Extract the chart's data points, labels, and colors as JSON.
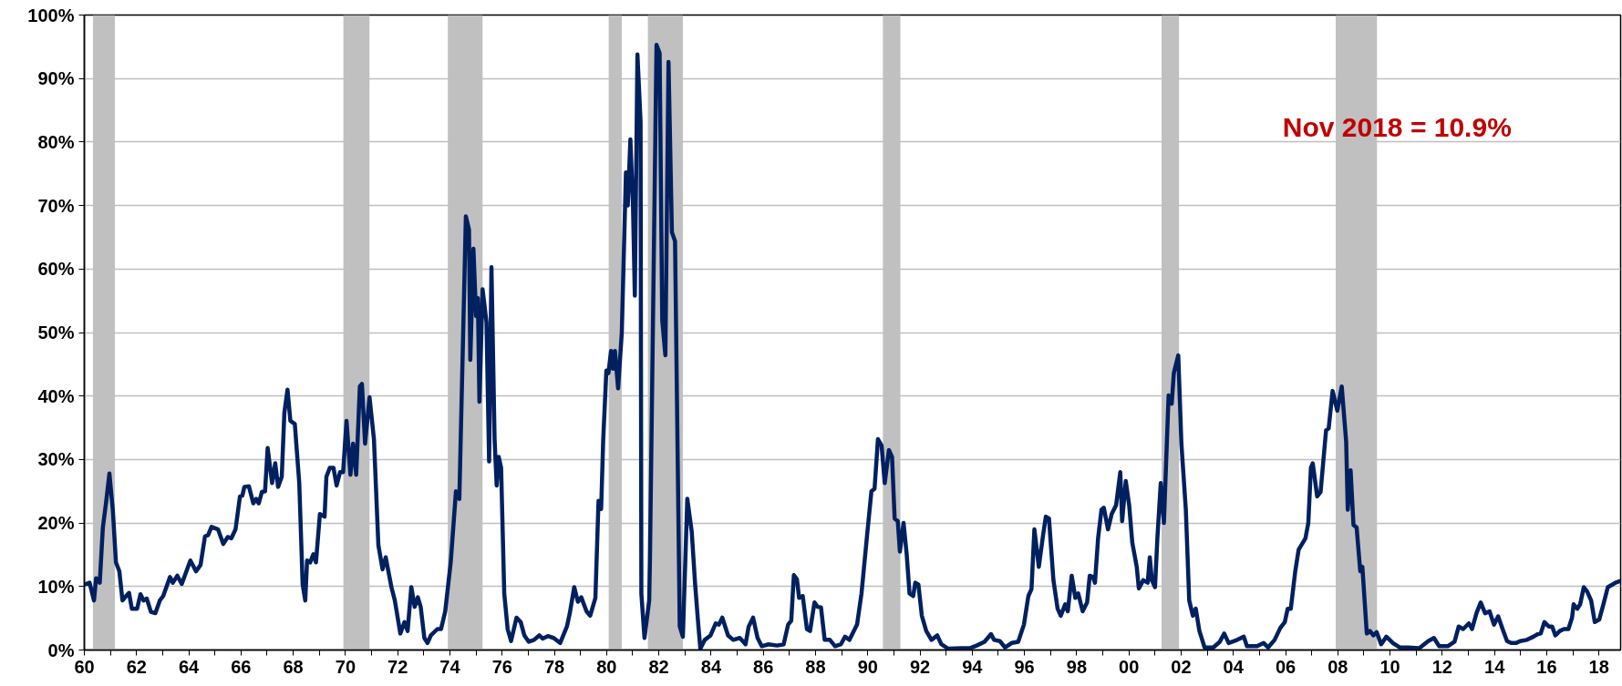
{
  "chart_data": {
    "type": "line",
    "x": [
      1960.0,
      1960.2,
      1960.37,
      1960.45,
      1960.59,
      1960.71,
      1960.84,
      1960.96,
      1961.09,
      1961.21,
      1961.34,
      1961.46,
      1961.6,
      1961.71,
      1961.82,
      1962.02,
      1962.15,
      1962.27,
      1962.39,
      1962.55,
      1962.72,
      1962.89,
      1963.02,
      1963.28,
      1963.39,
      1963.56,
      1963.73,
      1964.06,
      1964.28,
      1964.45,
      1964.62,
      1964.74,
      1964.87,
      1965.12,
      1965.32,
      1965.49,
      1965.63,
      1965.79,
      1965.96,
      1966.05,
      1966.13,
      1966.3,
      1966.47,
      1966.58,
      1966.68,
      1966.8,
      1966.92,
      1967.02,
      1967.19,
      1967.31,
      1967.42,
      1967.56,
      1967.66,
      1967.78,
      1967.89,
      1968.06,
      1968.23,
      1968.36,
      1968.46,
      1968.53,
      1968.65,
      1968.77,
      1968.87,
      1969.02,
      1969.2,
      1969.27,
      1969.4,
      1969.54,
      1969.66,
      1969.79,
      1969.91,
      1970.04,
      1970.19,
      1970.29,
      1970.41,
      1970.55,
      1970.63,
      1970.75,
      1970.92,
      1971.09,
      1971.26,
      1971.42,
      1971.54,
      1971.76,
      1971.89,
      1972.1,
      1972.26,
      1972.38,
      1972.52,
      1972.65,
      1972.77,
      1972.88,
      1973.02,
      1973.14,
      1973.27,
      1973.52,
      1973.66,
      1973.82,
      1974.03,
      1974.23,
      1974.36,
      1974.61,
      1974.73,
      1974.78,
      1974.9,
      1975.0,
      1975.07,
      1975.13,
      1975.25,
      1975.4,
      1975.5,
      1975.59,
      1975.71,
      1975.79,
      1975.87,
      1975.96,
      1976.08,
      1976.21,
      1976.34,
      1976.55,
      1976.71,
      1976.85,
      1977.02,
      1977.22,
      1977.42,
      1977.55,
      1977.75,
      1977.97,
      1978.22,
      1978.48,
      1978.59,
      1978.76,
      1978.9,
      1979.03,
      1979.23,
      1979.37,
      1979.57,
      1979.69,
      1979.79,
      1979.87,
      1979.99,
      1980.07,
      1980.17,
      1980.24,
      1980.32,
      1980.44,
      1980.58,
      1980.74,
      1980.81,
      1980.91,
      1981.01,
      1981.08,
      1981.18,
      1981.3,
      1981.33,
      1981.45,
      1981.63,
      1981.66,
      1981.91,
      1982.03,
      1982.13,
      1982.25,
      1982.37,
      1982.5,
      1982.62,
      1982.8,
      1982.92,
      1983.09,
      1983.26,
      1983.39,
      1983.51,
      1983.59,
      1983.76,
      1983.98,
      1984.18,
      1984.3,
      1984.43,
      1984.65,
      1984.85,
      1985.1,
      1985.32,
      1985.44,
      1985.61,
      1985.78,
      1985.94,
      1986.2,
      1986.53,
      1986.78,
      1986.95,
      1987.07,
      1987.17,
      1987.29,
      1987.37,
      1987.51,
      1987.67,
      1987.79,
      1987.96,
      1988.08,
      1988.21,
      1988.35,
      1988.55,
      1988.75,
      1988.97,
      1989.13,
      1989.3,
      1989.59,
      1989.76,
      1989.97,
      1990.14,
      1990.26,
      1990.39,
      1990.53,
      1990.65,
      1990.81,
      1990.93,
      1991.03,
      1991.15,
      1991.23,
      1991.37,
      1991.49,
      1991.6,
      1991.74,
      1991.82,
      1991.94,
      1992.07,
      1992.24,
      1992.44,
      1992.66,
      1992.82,
      1993.08,
      1993.58,
      1993.92,
      1994.17,
      1994.47,
      1994.72,
      1994.84,
      1995.06,
      1995.26,
      1995.51,
      1995.76,
      1995.98,
      1996.15,
      1996.27,
      1996.38,
      1996.55,
      1996.72,
      1996.82,
      1996.94,
      1997.11,
      1997.27,
      1997.39,
      1997.56,
      1997.66,
      1997.81,
      1997.95,
      1998.06,
      1998.23,
      1998.4,
      1998.5,
      1998.62,
      1998.7,
      1998.82,
      1998.95,
      1999.04,
      1999.2,
      1999.34,
      1999.51,
      1999.67,
      1999.74,
      1999.88,
      2000.01,
      2000.13,
      2000.3,
      2000.38,
      2000.55,
      2000.72,
      2000.8,
      2000.88,
      2001.0,
      2001.09,
      2001.22,
      2001.34,
      2001.52,
      2001.64,
      2001.72,
      2001.89,
      2002.01,
      2002.18,
      2002.31,
      2002.45,
      2002.56,
      2002.7,
      2002.9,
      2003.23,
      2003.48,
      2003.65,
      2003.82,
      2004.15,
      2004.4,
      2004.52,
      2004.91,
      2005.16,
      2005.33,
      2005.58,
      2005.8,
      2005.97,
      2006.08,
      2006.2,
      2006.37,
      2006.5,
      2006.76,
      2006.87,
      2006.97,
      2007.04,
      2007.21,
      2007.34,
      2007.55,
      2007.65,
      2007.8,
      2007.98,
      2008.15,
      2008.32,
      2008.38,
      2008.49,
      2008.6,
      2008.72,
      2008.86,
      2008.94,
      2009.11,
      2009.23,
      2009.36,
      2009.49,
      2009.66,
      2009.86,
      2010.11,
      2010.37,
      2010.7,
      2011.12,
      2011.46,
      2011.68,
      2011.88,
      2012.21,
      2012.47,
      2012.63,
      2012.8,
      2013.02,
      2013.14,
      2013.31,
      2013.47,
      2013.64,
      2013.81,
      2013.98,
      2014.14,
      2014.31,
      2014.48,
      2014.65,
      2014.82,
      2014.98,
      2015.24,
      2015.49,
      2015.66,
      2015.77,
      2015.91,
      2016.08,
      2016.21,
      2016.33,
      2016.5,
      2016.66,
      2016.83,
      2016.97,
      2017.03,
      2017.17,
      2017.28,
      2017.42,
      2017.55,
      2017.7,
      2017.84,
      2018.01,
      2018.17,
      2018.34,
      2018.51,
      2018.63,
      2018.83
    ],
    "series": [
      {
        "color": "#002060",
        "values": [
          10.3,
          10.6,
          7.8,
          11.3,
          10.6,
          19.3,
          23.5,
          27.8,
          22.1,
          13.8,
          12.4,
          7.8,
          8.5,
          9.0,
          6.5,
          6.5,
          8.8,
          7.8,
          8.1,
          6.0,
          5.8,
          7.8,
          8.5,
          11.5,
          10.6,
          11.7,
          10.4,
          14.1,
          12.4,
          13.4,
          17.9,
          18.1,
          19.4,
          19.0,
          16.7,
          17.8,
          17.6,
          19.0,
          24.2,
          24.3,
          25.7,
          25.8,
          23.1,
          23.8,
          23.1,
          24.9,
          25.0,
          31.8,
          26.3,
          29.4,
          25.7,
          27.3,
          37.4,
          41.0,
          36.1,
          35.6,
          26.3,
          10.3,
          7.8,
          14.1,
          13.8,
          15.1,
          13.8,
          21.4,
          21.0,
          27.3,
          28.7,
          28.7,
          25.9,
          28.0,
          28.0,
          36.1,
          27.6,
          32.5,
          27.6,
          41.5,
          41.9,
          32.5,
          39.8,
          33.2,
          16.5,
          12.7,
          14.6,
          9.9,
          7.8,
          2.6,
          4.4,
          3.0,
          9.9,
          6.8,
          8.3,
          6.8,
          1.9,
          1.1,
          2.3,
          3.3,
          3.3,
          6.1,
          13.8,
          25.0,
          23.8,
          68.3,
          66.2,
          45.7,
          63.2,
          52.6,
          55.4,
          39.1,
          56.8,
          51.6,
          29.7,
          60.3,
          33.2,
          25.9,
          30.4,
          28.7,
          8.9,
          3.3,
          1.4,
          5.1,
          4.4,
          2.3,
          1.3,
          1.6,
          2.3,
          1.8,
          2.2,
          1.9,
          1.1,
          3.7,
          5.8,
          9.9,
          7.6,
          8.3,
          6.1,
          5.4,
          8.2,
          23.5,
          22.2,
          33.2,
          44.0,
          43.6,
          47.1,
          44.3,
          47.1,
          41.2,
          49.9,
          75.2,
          70.0,
          80.4,
          70.0,
          55.8,
          93.8,
          83.2,
          8.9,
          1.9,
          7.8,
          14.4,
          95.3,
          94.0,
          51.9,
          46.4,
          92.6,
          65.8,
          64.4,
          3.7,
          2.1,
          23.8,
          18.6,
          10.3,
          4.0,
          0.2,
          1.6,
          2.3,
          4.2,
          4.0,
          5.1,
          2.3,
          1.6,
          1.9,
          0.9,
          3.7,
          5.1,
          1.9,
          0.6,
          0.9,
          0.7,
          0.9,
          4.0,
          4.6,
          11.8,
          11.1,
          8.2,
          8.5,
          3.3,
          3.0,
          7.5,
          6.8,
          6.7,
          1.6,
          1.6,
          0.6,
          0.9,
          2.1,
          1.6,
          4.0,
          8.9,
          17.9,
          25.0,
          25.4,
          33.2,
          32.2,
          26.3,
          31.5,
          30.4,
          20.7,
          20.3,
          15.5,
          20.0,
          15.1,
          8.9,
          8.5,
          10.6,
          10.3,
          5.4,
          3.0,
          1.6,
          2.3,
          0.9,
          0.2,
          0.3,
          0.3,
          0.7,
          1.3,
          2.5,
          1.6,
          1.4,
          0.4,
          1.1,
          1.3,
          4.0,
          8.5,
          9.6,
          19.0,
          13.1,
          18.3,
          21.0,
          20.7,
          11.0,
          6.5,
          5.4,
          7.2,
          6.1,
          11.7,
          8.2,
          8.9,
          6.1,
          7.5,
          11.7,
          11.5,
          10.6,
          17.6,
          22.1,
          22.4,
          19.0,
          21.4,
          22.8,
          28.0,
          20.3,
          26.6,
          22.8,
          16.9,
          13.1,
          9.7,
          11.0,
          10.6,
          14.6,
          11.0,
          9.9,
          17.6,
          26.3,
          20.0,
          40.1,
          38.8,
          43.6,
          46.4,
          32.5,
          22.1,
          7.8,
          5.4,
          6.5,
          3.0,
          0.4,
          0.4,
          1.3,
          2.6,
          1.1,
          1.6,
          2.1,
          0.6,
          0.6,
          1.1,
          0.4,
          1.6,
          3.5,
          4.4,
          6.5,
          6.5,
          12.4,
          15.8,
          17.6,
          20.0,
          28.7,
          29.4,
          24.2,
          24.9,
          34.6,
          34.9,
          40.8,
          37.7,
          41.5,
          32.8,
          22.1,
          28.3,
          19.7,
          19.3,
          12.4,
          13.1,
          2.6,
          3.0,
          2.3,
          2.8,
          0.9,
          2.1,
          1.1,
          0.4,
          0.4,
          0.3,
          1.4,
          1.9,
          0.6,
          0.6,
          1.3,
          3.7,
          3.3,
          4.2,
          3.3,
          5.8,
          7.5,
          5.8,
          6.1,
          4.0,
          5.3,
          3.3,
          1.4,
          1.1,
          1.1,
          1.4,
          1.6,
          2.1,
          2.5,
          2.6,
          4.4,
          3.7,
          3.7,
          2.3,
          3.0,
          3.3,
          3.3,
          5.1,
          7.2,
          6.5,
          7.2,
          9.9,
          9.2,
          7.8,
          4.4,
          4.8,
          7.2,
          9.9,
          10.3,
          10.6,
          10.9
        ]
      }
    ],
    "xlim": [
      1960,
      2018.83
    ],
    "xticks": [
      {
        "value": 1960,
        "label": "60"
      },
      {
        "value": 1961,
        "label": null
      },
      {
        "value": 1962,
        "label": "62"
      },
      {
        "value": 1963,
        "label": null
      },
      {
        "value": 1964,
        "label": "64"
      },
      {
        "value": 1965,
        "label": null
      },
      {
        "value": 1966,
        "label": "66"
      },
      {
        "value": 1967,
        "label": null
      },
      {
        "value": 1968,
        "label": "68"
      },
      {
        "value": 1969,
        "label": null
      },
      {
        "value": 1970,
        "label": "70"
      },
      {
        "value": 1971,
        "label": null
      },
      {
        "value": 1972,
        "label": "72"
      },
      {
        "value": 1973,
        "label": null
      },
      {
        "value": 1974,
        "label": "74"
      },
      {
        "value": 1975,
        "label": null
      },
      {
        "value": 1976,
        "label": "76"
      },
      {
        "value": 1977,
        "label": null
      },
      {
        "value": 1978,
        "label": "78"
      },
      {
        "value": 1979,
        "label": null
      },
      {
        "value": 1980,
        "label": "80"
      },
      {
        "value": 1981,
        "label": null
      },
      {
        "value": 1982,
        "label": "82"
      },
      {
        "value": 1983,
        "label": null
      },
      {
        "value": 1984,
        "label": "84"
      },
      {
        "value": 1985,
        "label": null
      },
      {
        "value": 1986,
        "label": "86"
      },
      {
        "value": 1987,
        "label": null
      },
      {
        "value": 1988,
        "label": "88"
      },
      {
        "value": 1989,
        "label": null
      },
      {
        "value": 1990,
        "label": "90"
      },
      {
        "value": 1991,
        "label": null
      },
      {
        "value": 1992,
        "label": "92"
      },
      {
        "value": 1993,
        "label": null
      },
      {
        "value": 1994,
        "label": "94"
      },
      {
        "value": 1995,
        "label": null
      },
      {
        "value": 1996,
        "label": "96"
      },
      {
        "value": 1997,
        "label": null
      },
      {
        "value": 1998,
        "label": "98"
      },
      {
        "value": 1999,
        "label": null
      },
      {
        "value": 2000,
        "label": "00"
      },
      {
        "value": 2001,
        "label": null
      },
      {
        "value": 2002,
        "label": "02"
      },
      {
        "value": 2003,
        "label": null
      },
      {
        "value": 2004,
        "label": "04"
      },
      {
        "value": 2005,
        "label": null
      },
      {
        "value": 2006,
        "label": "06"
      },
      {
        "value": 2007,
        "label": null
      },
      {
        "value": 2008,
        "label": "08"
      },
      {
        "value": 2009,
        "label": null
      },
      {
        "value": 2010,
        "label": "10"
      },
      {
        "value": 2011,
        "label": null
      },
      {
        "value": 2012,
        "label": "12"
      },
      {
        "value": 2013,
        "label": null
      },
      {
        "value": 2014,
        "label": "14"
      },
      {
        "value": 2015,
        "label": null
      },
      {
        "value": 2016,
        "label": "16"
      },
      {
        "value": 2017,
        "label": null
      },
      {
        "value": 2018,
        "label": "18"
      }
    ],
    "ylim": [
      0,
      100
    ],
    "yticks": [
      {
        "value": 0,
        "label": "0%"
      },
      {
        "value": 10,
        "label": "10%"
      },
      {
        "value": 20,
        "label": "20%"
      },
      {
        "value": 30,
        "label": "30%"
      },
      {
        "value": 40,
        "label": "40%"
      },
      {
        "value": 50,
        "label": "50%"
      },
      {
        "value": 60,
        "label": "60%"
      },
      {
        "value": 70,
        "label": "70%"
      },
      {
        "value": 80,
        "label": "80%"
      },
      {
        "value": 90,
        "label": "90%"
      },
      {
        "value": 100,
        "label": "100%"
      }
    ],
    "grid": "y",
    "line_style": "solid",
    "bands": [
      {
        "axis": "x",
        "from": 1960.33,
        "to": 1961.17,
        "color": "#c0c0c0"
      },
      {
        "axis": "x",
        "from": 1969.92,
        "to": 1970.92,
        "color": "#c0c0c0"
      },
      {
        "axis": "x",
        "from": 1973.92,
        "to": 1975.25,
        "color": "#c0c0c0"
      },
      {
        "axis": "x",
        "from": 1980.08,
        "to": 1980.58,
        "color": "#c0c0c0"
      },
      {
        "axis": "x",
        "from": 1981.58,
        "to": 1982.92,
        "color": "#c0c0c0"
      },
      {
        "axis": "x",
        "from": 1990.58,
        "to": 1991.25,
        "color": "#c0c0c0"
      },
      {
        "axis": "x",
        "from": 2001.25,
        "to": 2001.92,
        "color": "#c0c0c0"
      },
      {
        "axis": "x",
        "from": 2007.92,
        "to": 2009.5,
        "color": "#c0c0c0"
      }
    ],
    "annotations": [
      "Nov 2018 = 10.9%"
    ]
  }
}
